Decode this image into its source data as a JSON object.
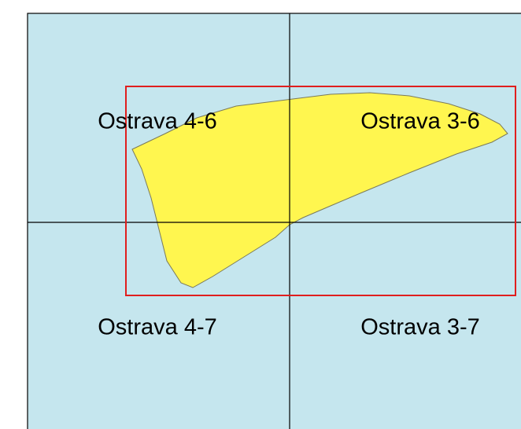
{
  "map": {
    "sheets": [
      {
        "label": "Ostrava 4-6"
      },
      {
        "label": "Ostrava 3-6"
      },
      {
        "label": "Ostrava 4-7"
      },
      {
        "label": "Ostrava 3-7"
      }
    ]
  }
}
